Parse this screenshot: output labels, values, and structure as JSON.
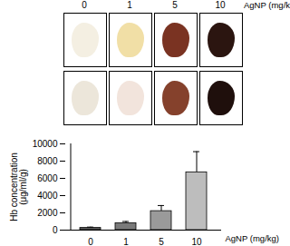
{
  "panel": {
    "labels": [
      "0",
      "1",
      "5",
      "10"
    ],
    "unit_label": "AgNP (mg/kg)"
  },
  "chart_data": {
    "type": "bar",
    "categories": [
      "0",
      "1",
      "5",
      "10"
    ],
    "values": [
      250,
      800,
      2200,
      6700
    ],
    "errors": [
      100,
      200,
      650,
      2400
    ],
    "colors": [
      "#5a5a5a",
      "#7a7a7a",
      "#9a9a9a",
      "#bdbdbd"
    ],
    "x_label": "AgNP (mg/kg)",
    "y_label": [
      "Hb concentration",
      "(μg/ml/g)"
    ],
    "ylim": [
      0,
      10000
    ],
    "yticks": [
      0,
      2000,
      4000,
      6000,
      8000,
      10000
    ]
  }
}
